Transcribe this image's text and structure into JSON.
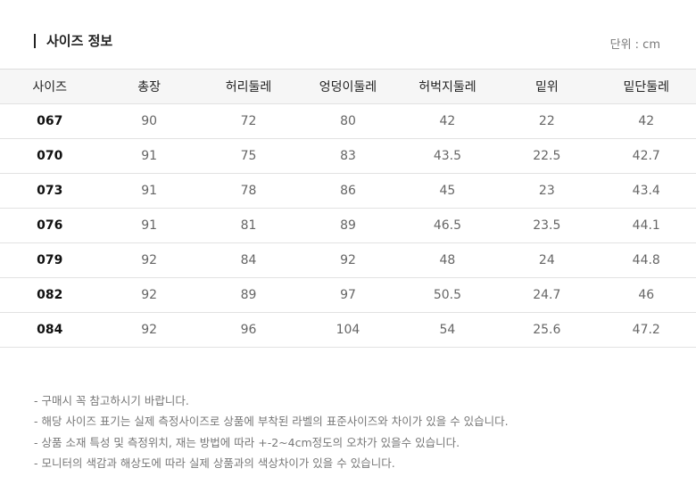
{
  "header": {
    "title": "사이즈 정보",
    "unit": "단위 : cm"
  },
  "table": {
    "columns": [
      "사이즈",
      "총장",
      "허리둘레",
      "엉덩이둘레",
      "허벅지둘레",
      "밑위",
      "밑단둘레"
    ],
    "rows": [
      [
        "067",
        90,
        72,
        80,
        42,
        22,
        42
      ],
      [
        "070",
        91,
        75,
        83,
        43.5,
        22.5,
        42.7
      ],
      [
        "073",
        91,
        78,
        86,
        45,
        23,
        43.4
      ],
      [
        "076",
        91,
        81,
        89,
        46.5,
        23.5,
        44.1
      ],
      [
        "079",
        92,
        84,
        92,
        48,
        24,
        44.8
      ],
      [
        "082",
        92,
        89,
        97,
        50.5,
        24.7,
        46
      ],
      [
        "084",
        92,
        96,
        104,
        54,
        25.6,
        47.2
      ]
    ]
  },
  "notes": [
    "- 구매시 꼭 참고하시기 바랍니다.",
    "- 해당 사이즈 표기는 실제 측정사이즈로 상품에 부착된 라벨의 표준사이즈와 차이가 있을 수 있습니다.",
    "- 상품 소재 특성 및 측정위치, 재는 방법에 따라 +-2~4cm정도의 오차가 있을수 있습니다.",
    "- 모니터의 색감과 해상도에 따라 실제 상품과의 색상차이가 있을 수 있습니다."
  ]
}
